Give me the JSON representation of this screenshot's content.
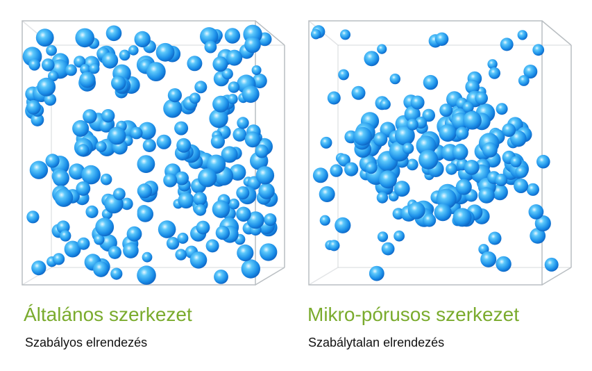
{
  "panels": [
    {
      "title": "Általános szerkezet",
      "subtitle": "Szabályos elrendezés"
    },
    {
      "title": "Mikro-pórusos szerkezet",
      "subtitle": "Szabálytalan elrendezés"
    }
  ]
}
